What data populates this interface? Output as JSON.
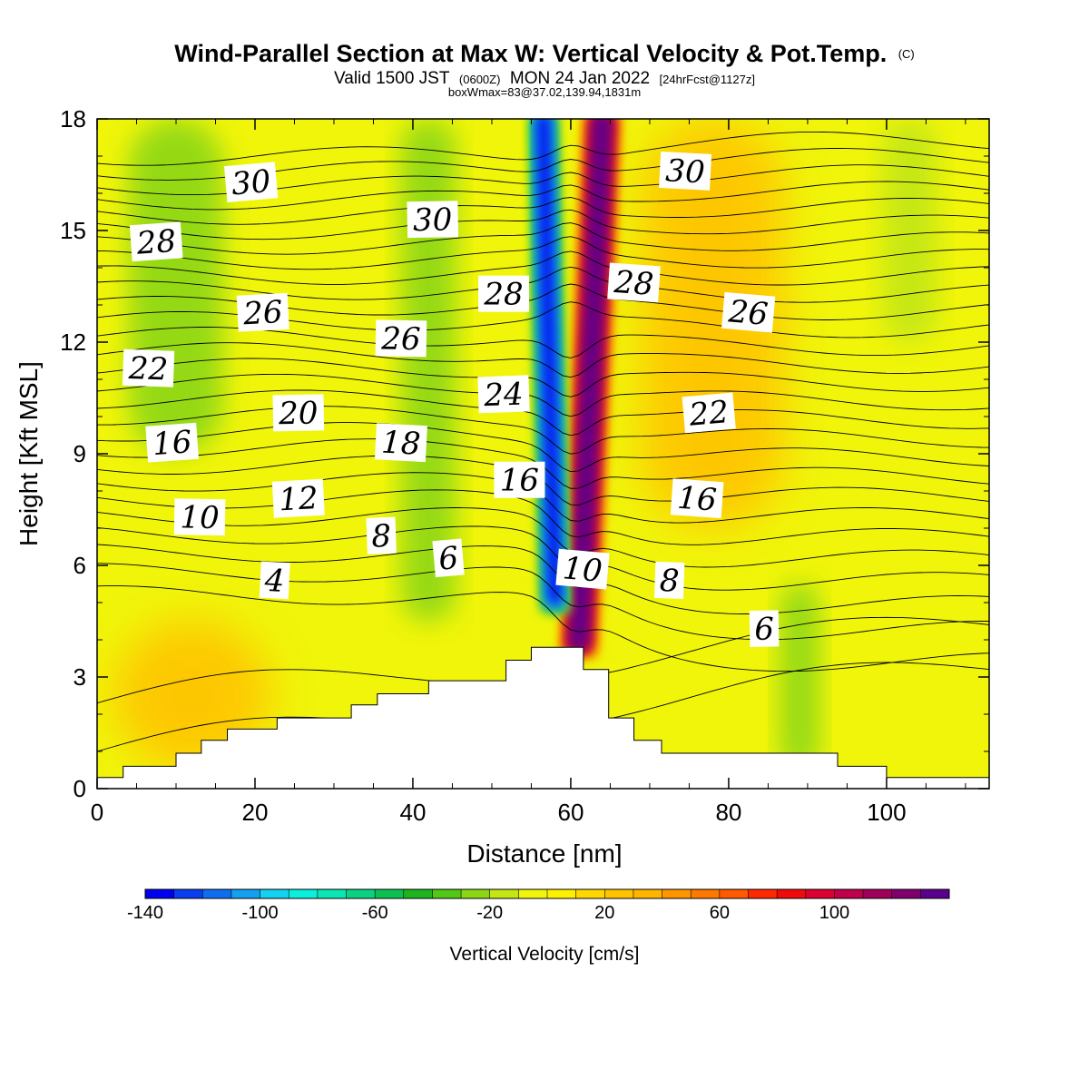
{
  "chart_data": {
    "type": "heatmap",
    "title": "Wind-Parallel Section at Max W: Vertical Velocity & Pot.Temp.",
    "title_tag": "(C)",
    "subtitle_parts": {
      "valid": "Valid 1500 JST",
      "utc": "(0600Z)",
      "date": "MON 24 Jan 2022",
      "forecast": "[24hrFcst@1127z]"
    },
    "subtitle2": "boxWmax=83@37.02,139.94,1831m",
    "xlabel": "Distance [nm]",
    "ylabel": "Height [Kft MSL]",
    "xlim": [
      0,
      113
    ],
    "ylim": [
      0,
      18
    ],
    "x_ticks": [
      "0",
      "20",
      "40",
      "60",
      "80",
      "100"
    ],
    "x_tick_values": [
      0,
      20,
      40,
      60,
      80,
      100
    ],
    "y_ticks": [
      "0",
      "3",
      "6",
      "9",
      "12",
      "15",
      "18"
    ],
    "y_tick_values": [
      0,
      3,
      6,
      9,
      12,
      15,
      18
    ],
    "colorbar": {
      "title": "Vertical Velocity [cm/s]",
      "min": -140,
      "max": 140,
      "step": 10,
      "tick_labels": [
        "-140",
        "-100",
        "-60",
        "-20",
        "20",
        "60",
        "100"
      ],
      "tick_values": [
        -140,
        -100,
        -60,
        -20,
        20,
        60,
        100
      ],
      "colors": [
        "#0000f0",
        "#0a3cf0",
        "#0f6ef0",
        "#14a0f0",
        "#14d2f0",
        "#0af0dc",
        "#0ae6b4",
        "#0ad282",
        "#0ac050",
        "#1eb41e",
        "#50c814",
        "#8cd714",
        "#c3e614",
        "#f0f50a",
        "#fff000",
        "#ffd700",
        "#ffc300",
        "#ffb400",
        "#ff9600",
        "#ff7800",
        "#ff5a00",
        "#ff2800",
        "#f00a0a",
        "#dc0032",
        "#c0004b",
        "#a0005a",
        "#82006e",
        "#5a008c"
      ]
    },
    "terrain_profile": {
      "x": [
        0,
        3.3,
        3.3,
        10,
        10,
        13.2,
        13.2,
        16.5,
        16.5,
        22.8,
        22.8,
        32.2,
        32.2,
        35.5,
        35.5,
        42.0,
        42.0,
        51.8,
        51.8,
        55.0,
        55.0,
        61.6,
        61.6,
        64.8,
        64.8,
        68.0,
        68.0,
        71.5,
        71.5,
        93.8,
        93.8,
        100.0,
        100.0,
        113
      ],
      "z": [
        0.3,
        0.3,
        0.6,
        0.6,
        0.95,
        0.95,
        1.3,
        1.3,
        1.6,
        1.6,
        1.9,
        1.9,
        2.25,
        2.25,
        2.55,
        2.55,
        2.9,
        2.9,
        3.45,
        3.45,
        3.8,
        3.8,
        3.2,
        3.2,
        1.9,
        1.9,
        1.3,
        1.3,
        0.95,
        0.95,
        0.6,
        0.6,
        0.3,
        0.3
      ]
    },
    "vertical_velocity_features": [
      {
        "kind": "updraft-core",
        "value": 140,
        "x_bottom": 61.0,
        "x_top": 64.0,
        "z_bottom": 3.8,
        "z_top": 18,
        "width_nm": 4.5
      },
      {
        "kind": "downdraft-core",
        "value": -140,
        "x_bottom": 58.0,
        "x_top": 56.5,
        "z_bottom": 5.0,
        "z_top": 18,
        "width_nm": 3.2
      },
      {
        "kind": "weak-downdraft-band",
        "value": -30,
        "x": 10,
        "z_from": 9,
        "z_to": 18,
        "width_nm": 12
      },
      {
        "kind": "weak-downdraft-band",
        "value": -30,
        "x": 42,
        "z_from": 4.5,
        "z_to": 18,
        "width_nm": 7
      },
      {
        "kind": "weak-downdraft-band",
        "value": -30,
        "x": 89,
        "z_from": 0.5,
        "z_to": 5.5,
        "width_nm": 5
      },
      {
        "kind": "weak-downdraft-band",
        "value": -20,
        "x": 103,
        "z_from": 12,
        "z_to": 18,
        "width_nm": 7
      },
      {
        "kind": "weak-updraft-region",
        "value": 20,
        "x": 78,
        "z_from": 7,
        "z_to": 18,
        "width_nm": 18
      },
      {
        "kind": "weak-updraft-region",
        "value": 20,
        "x": 12,
        "z_from": 0.5,
        "z_to": 4.5,
        "width_nm": 20
      }
    ],
    "potential_temperature": {
      "units": "C",
      "contour_interval": 1,
      "levels": [
        4,
        5,
        6,
        7,
        8,
        9,
        10,
        11,
        12,
        13,
        14,
        15,
        16,
        17,
        18,
        19,
        20,
        21,
        22,
        23,
        24,
        25,
        26,
        27,
        28,
        29,
        30,
        31
      ],
      "contour_labels": [
        {
          "text": "30",
          "x": 19.5,
          "z": 16.3
        },
        {
          "text": "30",
          "x": 42.5,
          "z": 15.3
        },
        {
          "text": "30",
          "x": 74.5,
          "z": 16.6
        },
        {
          "text": "28",
          "x": 7.5,
          "z": 14.7
        },
        {
          "text": "28",
          "x": 51.5,
          "z": 13.3
        },
        {
          "text": "28",
          "x": 68.0,
          "z": 13.6
        },
        {
          "text": "26",
          "x": 21.0,
          "z": 12.8
        },
        {
          "text": "26",
          "x": 38.5,
          "z": 12.1
        },
        {
          "text": "26",
          "x": 82.5,
          "z": 12.8
        },
        {
          "text": "24",
          "x": 51.5,
          "z": 10.6
        },
        {
          "text": "22",
          "x": 6.5,
          "z": 11.3
        },
        {
          "text": "22",
          "x": 77.5,
          "z": 10.1
        },
        {
          "text": "20",
          "x": 25.5,
          "z": 10.1
        },
        {
          "text": "18",
          "x": 38.5,
          "z": 9.3
        },
        {
          "text": "16",
          "x": 9.5,
          "z": 9.3
        },
        {
          "text": "16",
          "x": 53.5,
          "z": 8.3
        },
        {
          "text": "16",
          "x": 76.0,
          "z": 7.8
        },
        {
          "text": "12",
          "x": 25.5,
          "z": 7.8
        },
        {
          "text": "10",
          "x": 13.0,
          "z": 7.3
        },
        {
          "text": "10",
          "x": 61.5,
          "z": 5.9
        },
        {
          "text": "8",
          "x": 36.0,
          "z": 6.8
        },
        {
          "text": "8",
          "x": 72.5,
          "z": 5.6
        },
        {
          "text": "6",
          "x": 44.5,
          "z": 6.2
        },
        {
          "text": "6",
          "x": 84.5,
          "z": 4.3
        },
        {
          "text": "4",
          "x": 22.5,
          "z": 5.6
        }
      ]
    }
  }
}
